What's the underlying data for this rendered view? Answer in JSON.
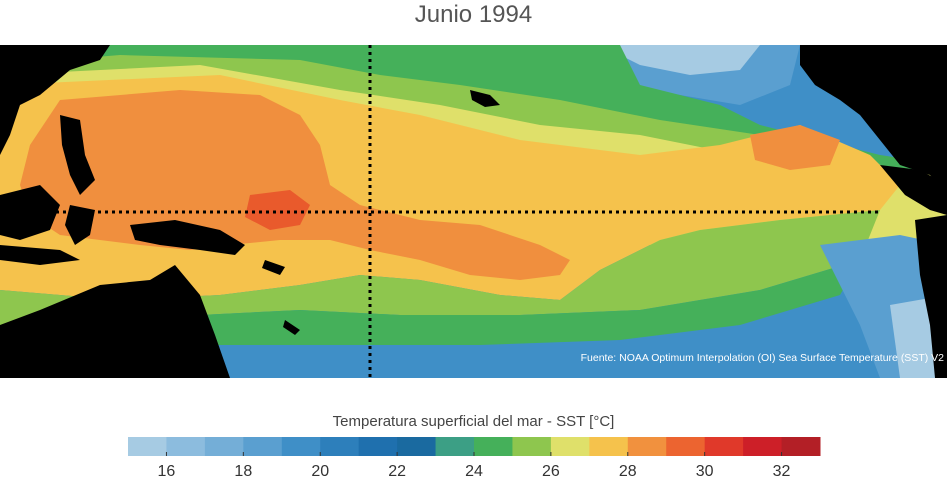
{
  "title": "Junio 1994",
  "source": "Fuente: NOAA Optimum Interpolation (OI) Sea Surface Temperature (SST) V2",
  "colorbar": {
    "label": "Temperatura superficial del mar - SST  [°C]",
    "ticks": [
      "16",
      "18",
      "20",
      "22",
      "24",
      "26",
      "28",
      "30",
      "32"
    ],
    "colors": [
      "#a6cbe3",
      "#8cbcde",
      "#74aed7",
      "#5a9fd0",
      "#3f8fc7",
      "#2d7fbb",
      "#1f70ae",
      "#1a6aa0",
      "#3c9f85",
      "#45b05a",
      "#8ec64e",
      "#dfe06a",
      "#f5c24c",
      "#f1913e",
      "#ec6430",
      "#e0392a",
      "#cd1f28",
      "#b31f26"
    ],
    "range": [
      15,
      33
    ]
  },
  "map": {
    "ocean_colors": {
      "warm_pool": "#f08f3e",
      "hot": "#e95a2c",
      "warm": "#f5c24c",
      "mild": "#dfe06a",
      "green": "#8ec64e",
      "teal": "#45b05a",
      "blue": "#2d7fbb",
      "cool": "#5a9fd0",
      "cold": "#a6cbe3"
    },
    "land_color": "#000000",
    "gridline": "dotted"
  }
}
